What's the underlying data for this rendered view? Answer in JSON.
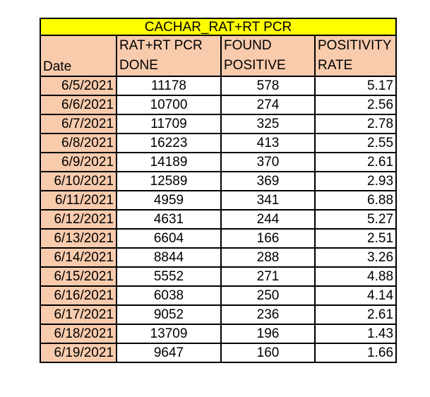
{
  "title": "CACHAR_RAT+RT PCR",
  "headers": {
    "date": "Date",
    "done_line1": "RAT+RT PCR",
    "done_line2": "DONE",
    "found_line1": "FOUND",
    "found_line2": "POSITIVE",
    "rate_line1": "POSITIVITY",
    "rate_line2": "RATE"
  },
  "rows": [
    {
      "date": "6/5/2021",
      "done": "11178",
      "found": "578",
      "rate": "5.17"
    },
    {
      "date": "6/6/2021",
      "done": "10700",
      "found": "274",
      "rate": "2.56"
    },
    {
      "date": "6/7/2021",
      "done": "11709",
      "found": "325",
      "rate": "2.78"
    },
    {
      "date": "6/8/2021",
      "done": "16223",
      "found": "413",
      "rate": "2.55"
    },
    {
      "date": "6/9/2021",
      "done": "14189",
      "found": "370",
      "rate": "2.61"
    },
    {
      "date": "6/10/2021",
      "done": "12589",
      "found": "369",
      "rate": "2.93"
    },
    {
      "date": "6/11/2021",
      "done": "4959",
      "found": "341",
      "rate": "6.88"
    },
    {
      "date": "6/12/2021",
      "done": "4631",
      "found": "244",
      "rate": "5.27"
    },
    {
      "date": "6/13/2021",
      "done": "6604",
      "found": "166",
      "rate": "2.51"
    },
    {
      "date": "6/14/2021",
      "done": "8844",
      "found": "288",
      "rate": "3.26"
    },
    {
      "date": "6/15/2021",
      "done": "5552",
      "found": "271",
      "rate": "4.88"
    },
    {
      "date": "6/16/2021",
      "done": "6038",
      "found": "250",
      "rate": "4.14"
    },
    {
      "date": "6/17/2021",
      "done": "9052",
      "found": "236",
      "rate": "2.61"
    },
    {
      "date": "6/18/2021",
      "done": "13709",
      "found": "196",
      "rate": "1.43"
    },
    {
      "date": "6/19/2021",
      "done": "9647",
      "found": "160",
      "rate": "1.66"
    }
  ],
  "colors": {
    "title_background": "#ffff00",
    "header_background": "#f8cbad",
    "date_background": "#f8cbad",
    "border": "#000000"
  }
}
